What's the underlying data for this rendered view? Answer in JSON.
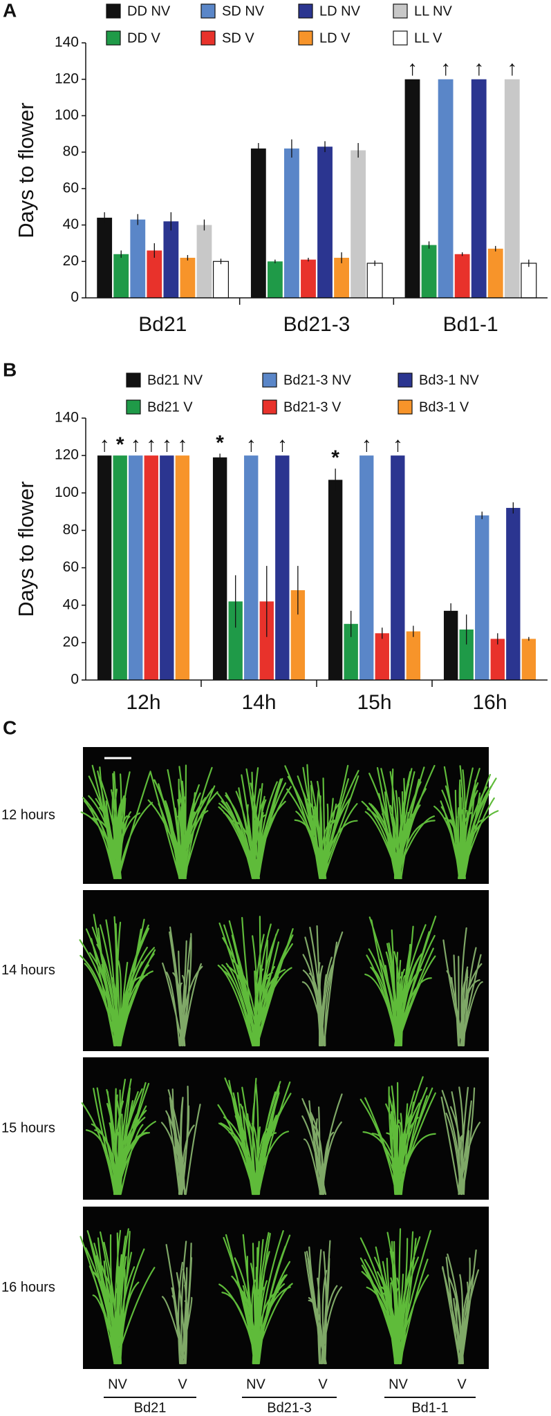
{
  "chart_data": [
    {
      "type": "bar",
      "label": "A",
      "ylabel": "Days to flower",
      "categories": [
        "Bd21",
        "Bd21-3",
        "Bd1-1"
      ],
      "ylim": [
        0,
        140
      ],
      "yticks": [
        0,
        20,
        40,
        60,
        80,
        100,
        120,
        140
      ],
      "series": [
        {
          "name": "DD NV",
          "color": "#111111",
          "values": [
            44,
            82,
            120
          ],
          "errors": [
            3,
            3,
            null
          ],
          "markers": [
            null,
            null,
            "↑"
          ]
        },
        {
          "name": "DD V",
          "color": "#1f9a48",
          "values": [
            24,
            20,
            29
          ],
          "errors": [
            2,
            1,
            2
          ],
          "markers": [
            null,
            null,
            null
          ]
        },
        {
          "name": "SD NV",
          "color": "#5a86c8",
          "values": [
            43,
            82,
            120
          ],
          "errors": [
            3,
            5,
            null
          ],
          "markers": [
            null,
            null,
            "↑"
          ]
        },
        {
          "name": "SD V",
          "color": "#e8322b",
          "values": [
            26,
            21,
            24
          ],
          "errors": [
            4,
            1,
            1
          ],
          "markers": [
            null,
            null,
            null
          ]
        },
        {
          "name": "LD NV",
          "color": "#2b3590",
          "values": [
            42,
            83,
            120
          ],
          "errors": [
            5,
            3,
            null
          ],
          "markers": [
            null,
            null,
            "↑"
          ]
        },
        {
          "name": "LD V",
          "color": "#f7942a",
          "values": [
            22,
            22,
            27
          ],
          "errors": [
            1.5,
            3,
            1.5
          ],
          "markers": [
            null,
            null,
            null
          ]
        },
        {
          "name": "LL NV",
          "color": "#c8c8c8",
          "values": [
            40,
            81,
            120
          ],
          "errors": [
            3,
            4,
            null
          ],
          "markers": [
            null,
            null,
            "↑"
          ]
        },
        {
          "name": "LL V",
          "color": "#ffffff",
          "values": [
            20,
            19,
            19
          ],
          "errors": [
            1.5,
            1.5,
            2
          ],
          "markers": [
            null,
            null,
            null
          ]
        }
      ]
    },
    {
      "type": "bar",
      "label": "B",
      "ylabel": "Days to flower",
      "categories": [
        "12h",
        "14h",
        "15h",
        "16h"
      ],
      "ylim": [
        0,
        140
      ],
      "yticks": [
        0,
        20,
        40,
        60,
        80,
        100,
        120,
        140
      ],
      "series": [
        {
          "name": "Bd21 NV",
          "color": "#111111",
          "values": [
            120,
            119,
            107,
            37
          ],
          "errors": [
            null,
            2,
            6,
            4
          ],
          "markers": [
            "↑",
            "*",
            "*",
            null
          ]
        },
        {
          "name": "Bd21 V",
          "color": "#1f9a48",
          "values": [
            120,
            42,
            30,
            27
          ],
          "errors": [
            null,
            14,
            7,
            8
          ],
          "markers": [
            "*",
            null,
            null,
            null
          ]
        },
        {
          "name": "Bd21-3 NV",
          "color": "#5a86c8",
          "values": [
            120,
            120,
            120,
            88
          ],
          "errors": [
            null,
            null,
            null,
            2
          ],
          "markers": [
            "↑",
            "↑",
            "↑",
            null
          ]
        },
        {
          "name": "Bd21-3 V",
          "color": "#e8322b",
          "values": [
            120,
            42,
            25,
            22
          ],
          "errors": [
            null,
            19,
            3,
            3
          ],
          "markers": [
            "↑",
            null,
            null,
            null
          ]
        },
        {
          "name": "Bd3-1 NV",
          "color": "#2b3590",
          "values": [
            120,
            120,
            120,
            92
          ],
          "errors": [
            null,
            null,
            null,
            3
          ],
          "markers": [
            "↑",
            "↑",
            "↑",
            null
          ]
        },
        {
          "name": "Bd3-1 V",
          "color": "#f7942a",
          "values": [
            120,
            48,
            26,
            22
          ],
          "errors": [
            null,
            13,
            3,
            1
          ],
          "markers": [
            "↑",
            null,
            null,
            null
          ]
        }
      ]
    }
  ],
  "panel_c": {
    "label": "C",
    "rows": [
      "12 hours",
      "14 hours",
      "15 hours",
      "16 hours"
    ],
    "columns": [
      {
        "name": "Bd21",
        "treatments": [
          "NV",
          "V"
        ]
      },
      {
        "name": "Bd21-3",
        "treatments": [
          "NV",
          "V"
        ]
      },
      {
        "name": "Bd1-1",
        "treatments": [
          "NV",
          "V"
        ]
      }
    ]
  }
}
